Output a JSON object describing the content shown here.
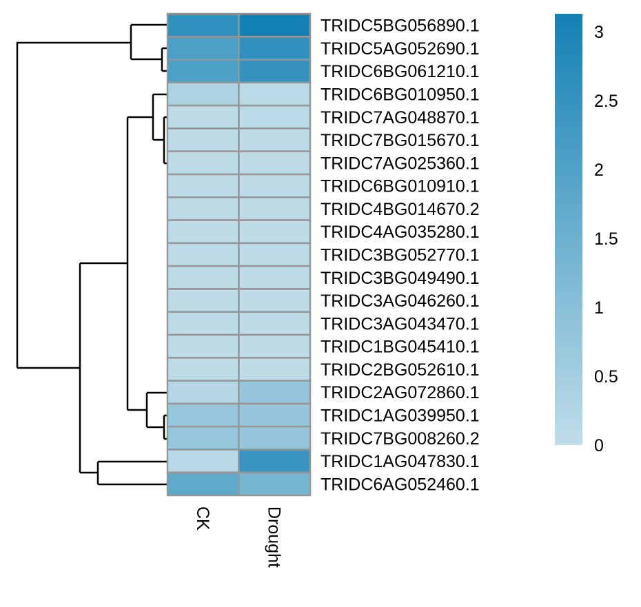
{
  "chart_data": {
    "type": "heatmap",
    "title": "",
    "columns": [
      "CK",
      "Drought"
    ],
    "rows": [
      "TRIDC5BG056890.1",
      "TRIDC5AG052690.1",
      "TRIDC6BG061210.1",
      "TRIDC6BG010950.1",
      "TRIDC7AG048870.1",
      "TRIDC7BG015670.1",
      "TRIDC7AG025360.1",
      "TRIDC6BG010910.1",
      "TRIDC4BG014670.2",
      "TRIDC4AG035280.1",
      "TRIDC3BG052770.1",
      "TRIDC3BG049490.1",
      "TRIDC3AG046260.1",
      "TRIDC3AG043470.1",
      "TRIDC1BG045410.1",
      "TRIDC2BG052610.1",
      "TRIDC2AG072860.1",
      "TRIDC1AG039950.1",
      "TRIDC7BG008260.2",
      "TRIDC1AG047830.1",
      "TRIDC6AG052460.1"
    ],
    "values": [
      [
        2.6,
        3.13
      ],
      [
        2.1,
        2.6
      ],
      [
        2.1,
        2.5
      ],
      [
        0.35,
        0.1
      ],
      [
        0.04,
        0.08
      ],
      [
        0.03,
        0.05
      ],
      [
        0.03,
        0.05
      ],
      [
        0.03,
        0.04
      ],
      [
        0.03,
        0.04
      ],
      [
        0.03,
        0.04
      ],
      [
        0.03,
        0.04
      ],
      [
        0.03,
        0.04
      ],
      [
        0.03,
        0.04
      ],
      [
        0.03,
        0.04
      ],
      [
        0.03,
        0.04
      ],
      [
        0.03,
        0.04
      ],
      [
        0.2,
        0.8
      ],
      [
        0.75,
        0.78
      ],
      [
        0.75,
        0.76
      ],
      [
        0.12,
        2.45
      ],
      [
        1.75,
        1.35
      ]
    ],
    "color_scale": {
      "min": 0,
      "max": 3.13,
      "low_color": "#c0dde9",
      "high_color": "#1380b4"
    },
    "legend": {
      "ticks": [
        "0",
        "0.5",
        "1",
        "1.5",
        "2",
        "2.5",
        "3"
      ],
      "tick_values": [
        0,
        0.5,
        1,
        1.5,
        2,
        2.5,
        3
      ],
      "placement": "right"
    },
    "cell_border_color": "#969696",
    "row_dendrogram": true
  }
}
